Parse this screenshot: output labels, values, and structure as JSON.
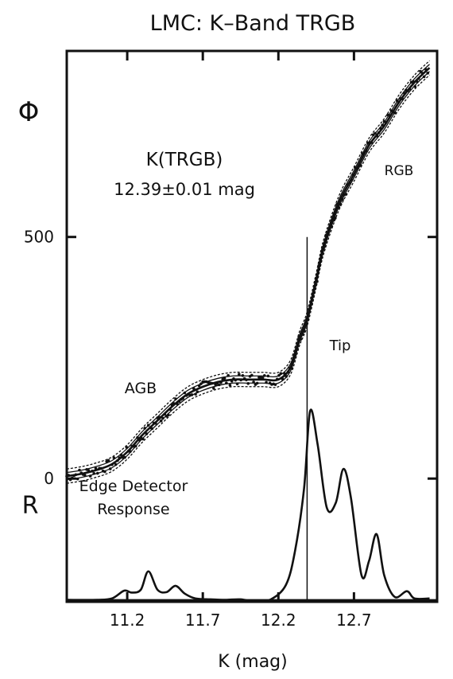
{
  "chart_data": {
    "type": "line",
    "title": "LMC: K–Band TRGB",
    "xlabel": "K (mag)",
    "ylabel": "Φ",
    "ylabel_lower": "R",
    "x_ticks": [
      11.2,
      11.7,
      12.2,
      12.7
    ],
    "x_tick_labels": [
      "11.2",
      "11.7",
      "12.2",
      "12.7"
    ],
    "y_ticks": [
      0,
      500
    ],
    "y_tick_labels": [
      "0",
      "500"
    ],
    "xlim": [
      10.8,
      13.25
    ],
    "ylim": [
      -255,
      885
    ],
    "annotations": {
      "trgb_title": "K(TRGB)",
      "trgb_value": "12.39±0.01 mag",
      "agb": "AGB",
      "rgb": "RGB",
      "tip": "Tip",
      "edge_1": "Edge Detector",
      "edge_2": "Response"
    },
    "tip_mag": 12.39,
    "series": [
      {
        "role": "luminosity-function",
        "x": [
          10.8,
          10.9,
          11.0,
          11.1,
          11.2,
          11.3,
          11.4,
          11.5,
          11.6,
          11.7,
          11.8,
          11.9,
          12.0,
          12.1,
          12.2,
          12.28,
          12.34,
          12.39,
          12.45,
          12.5,
          12.6,
          12.7,
          12.8,
          12.9,
          13.0,
          13.1,
          13.2
        ],
        "y": [
          5,
          10,
          18,
          30,
          55,
          90,
          120,
          150,
          175,
          190,
          200,
          205,
          205,
          205,
          205,
          230,
          290,
          330,
          410,
          480,
          570,
          630,
          690,
          730,
          780,
          820,
          850
        ]
      },
      {
        "role": "edge-detector-response",
        "x": [
          10.8,
          11.0,
          11.1,
          11.18,
          11.23,
          11.29,
          11.34,
          11.4,
          11.46,
          11.52,
          11.58,
          11.65,
          11.75,
          11.85,
          11.95,
          12.05,
          12.15,
          12.25,
          12.31,
          12.37,
          12.41,
          12.46,
          12.52,
          12.58,
          12.63,
          12.68,
          12.75,
          12.8,
          12.85,
          12.9,
          12.97,
          13.05,
          13.1,
          13.2
        ],
        "y": [
          -251,
          -251,
          -248,
          -232,
          -236,
          -230,
          -192,
          -230,
          -235,
          -222,
          -238,
          -248,
          -250,
          -251,
          -250,
          -255,
          -250,
          -220,
          -150,
          -20,
          140,
          70,
          -60,
          -50,
          20,
          -40,
          -200,
          -170,
          -115,
          -200,
          -245,
          -233,
          -248,
          -248
        ]
      }
    ]
  }
}
